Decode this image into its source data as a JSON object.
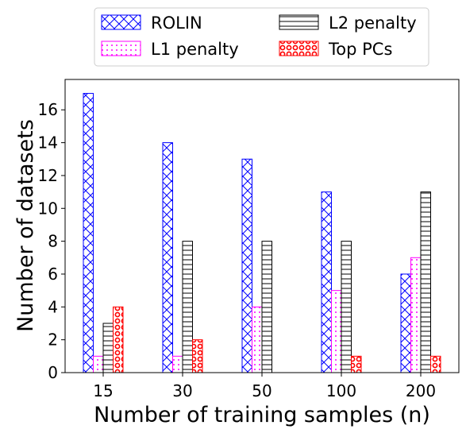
{
  "chart_data": {
    "type": "bar",
    "categories": [
      "15",
      "30",
      "50",
      "100",
      "200"
    ],
    "series": [
      {
        "name": "ROLIN",
        "values": [
          17,
          14,
          13,
          11,
          6
        ],
        "color": "#0000ff",
        "pattern": "crosshatch"
      },
      {
        "name": "L1 penalty",
        "values": [
          1,
          1,
          4,
          5,
          7
        ],
        "color": "#ff00ff",
        "pattern": "dots"
      },
      {
        "name": "L2 penalty",
        "values": [
          3,
          8,
          8,
          8,
          11
        ],
        "color": "#000000",
        "pattern": "horizontal-lines"
      },
      {
        "name": "Top PCs",
        "values": [
          4,
          2,
          0,
          1,
          1
        ],
        "color": "#ff0000",
        "pattern": "circles"
      }
    ],
    "xlabel": "Number of training samples (n)",
    "ylabel": "Number of datasets",
    "ylim": [
      0,
      17.85
    ],
    "yticks": [
      "0",
      "2",
      "4",
      "6",
      "8",
      "10",
      "12",
      "14",
      "16"
    ],
    "legend_position": "top-center, outside plot, 2 columns",
    "grid": false
  }
}
